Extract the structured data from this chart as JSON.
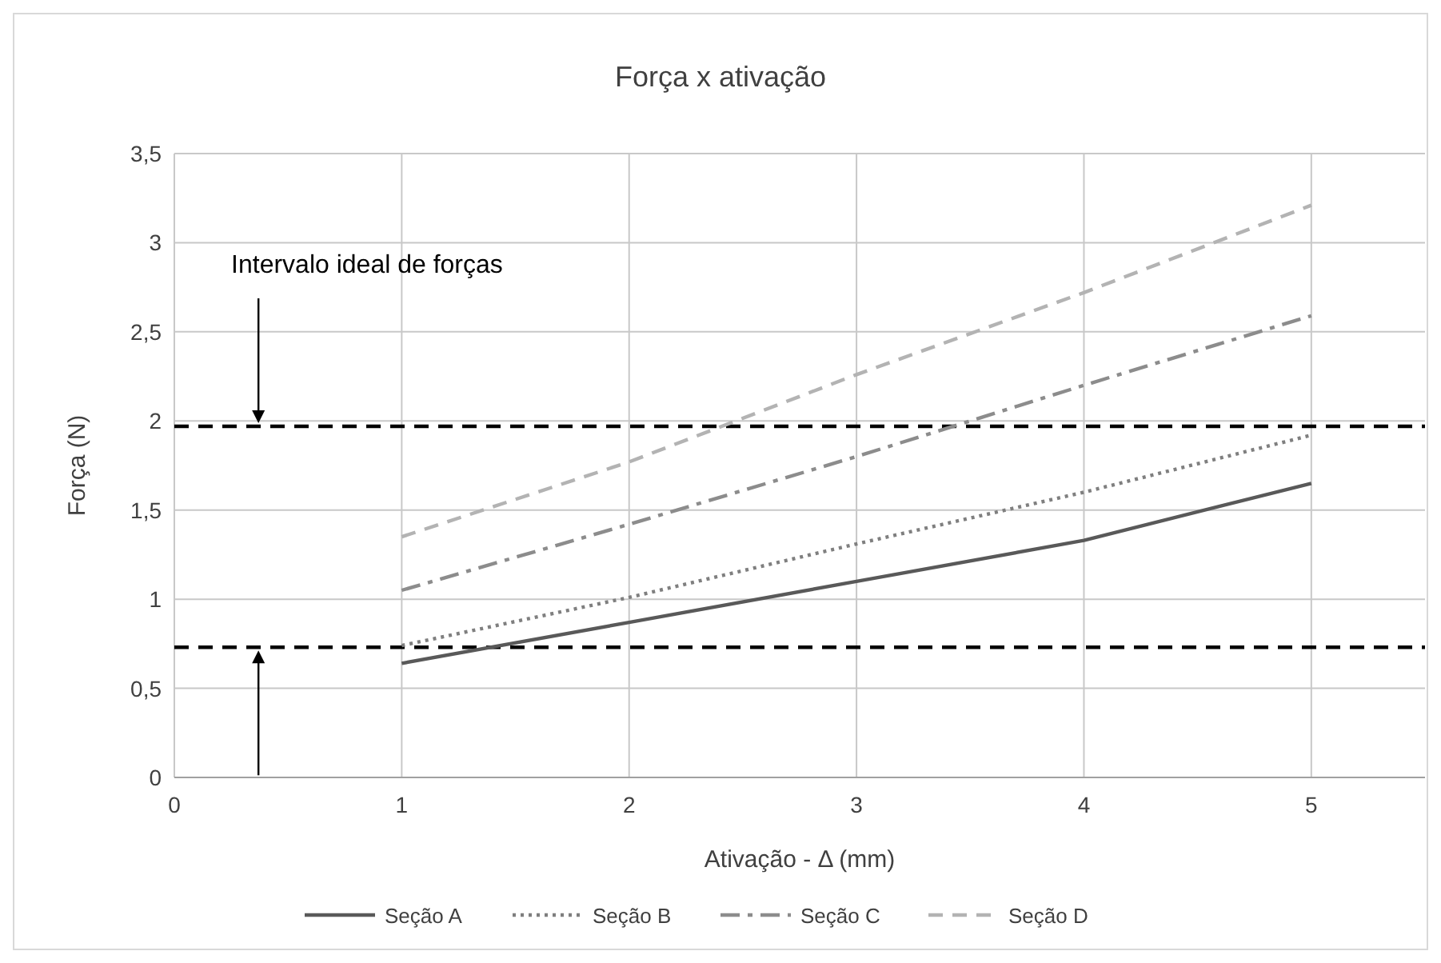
{
  "chart_data": {
    "type": "line",
    "title": "Força x ativação",
    "xlabel": "Ativação - Δ (mm)",
    "ylabel": "Força (N)",
    "x": [
      1,
      2,
      3,
      4,
      5
    ],
    "series": [
      {
        "name": "Seção A",
        "color": "#595959",
        "line_style": "solid",
        "values": [
          0.64,
          0.87,
          1.1,
          1.33,
          1.65
        ]
      },
      {
        "name": "Seção B",
        "color": "#7f7f7f",
        "line_style": "dotted",
        "values": [
          0.74,
          1.01,
          1.31,
          1.6,
          1.92
        ]
      },
      {
        "name": "Seção C",
        "color": "#8c8c8c",
        "line_style": "dashdot",
        "values": [
          1.05,
          1.42,
          1.8,
          2.2,
          2.59
        ]
      },
      {
        "name": "Seção D",
        "color": "#b3b3b3",
        "line_style": "dashed",
        "values": [
          1.35,
          1.77,
          2.26,
          2.72,
          3.21
        ]
      }
    ],
    "xlim": [
      0,
      5.5
    ],
    "xticks": [
      0,
      1,
      2,
      3,
      4,
      5
    ],
    "ylim": [
      0,
      3.5
    ],
    "yticks": [
      0,
      {
        "value": 0.5,
        "label": "0,5"
      },
      1,
      {
        "value": 1.5,
        "label": "1,5"
      },
      2,
      {
        "value": 2.5,
        "label": "2,5"
      },
      3,
      {
        "value": 3.5,
        "label": "3,5"
      }
    ],
    "ref_lines": [
      {
        "axis": "y",
        "value": 1.97,
        "color": "#000000",
        "line_style": "dashed"
      },
      {
        "axis": "y",
        "value": 0.73,
        "color": "#000000",
        "line_style": "dashed"
      }
    ],
    "annotations": [
      "Intervalo ideal de forças"
    ],
    "grid": true,
    "legend": "bottom",
    "marker": "none"
  }
}
